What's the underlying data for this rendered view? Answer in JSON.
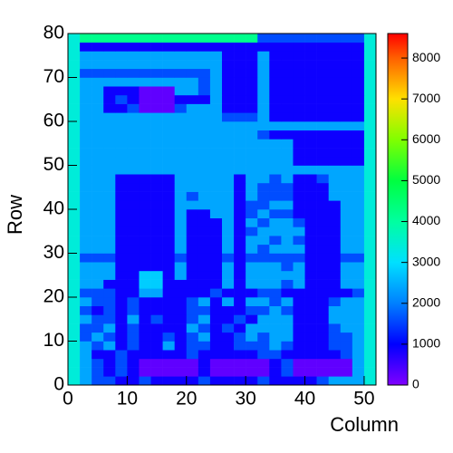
{
  "chart_data": {
    "type": "heatmap",
    "x_label": "Column",
    "y_label": "Row",
    "xlim": [
      0,
      52
    ],
    "ylim": [
      0,
      80
    ],
    "zlim": [
      0,
      8600
    ],
    "xticks": [
      0,
      10,
      20,
      30,
      40,
      50
    ],
    "yticks": [
      0,
      10,
      20,
      30,
      40,
      50,
      60,
      70,
      80
    ],
    "zticks": [
      0,
      1000,
      2000,
      3000,
      4000,
      5000,
      6000,
      7000,
      8000
    ],
    "colorscale": [
      [
        0,
        "#8000ff"
      ],
      [
        1000,
        "#0000ff"
      ],
      [
        2000,
        "#0080ff"
      ],
      [
        3000,
        "#00e0ff"
      ],
      [
        4000,
        "#00ffa0"
      ],
      [
        5000,
        "#00ff40"
      ],
      [
        6000,
        "#80ff00"
      ],
      [
        7000,
        "#ffe000"
      ],
      [
        8000,
        "#ff6000"
      ],
      [
        8600,
        "#ff0000"
      ]
    ],
    "xbins": [
      0,
      2,
      4,
      6,
      8,
      10,
      12,
      14,
      16,
      18,
      20,
      22,
      24,
      26,
      28,
      30,
      32,
      34,
      36,
      38,
      40,
      42,
      44,
      46,
      48,
      50,
      52
    ],
    "ybins": [
      0,
      2,
      4,
      6,
      8,
      10,
      12,
      14,
      16,
      18,
      20,
      22,
      24,
      26,
      28,
      30,
      32,
      34,
      36,
      38,
      40,
      42,
      44,
      46,
      48,
      50,
      52,
      54,
      56,
      58,
      60,
      62,
      64,
      66,
      68,
      70,
      72,
      74,
      76,
      78,
      80
    ],
    "z": [
      [
        3400,
        2400,
        1600,
        1600,
        900,
        900,
        1600,
        900,
        900,
        900,
        900,
        1600,
        900,
        900,
        900,
        900,
        1600,
        900,
        900,
        900,
        900,
        1600,
        2400,
        2400,
        2400,
        3400
      ],
      [
        3400,
        2400,
        1600,
        900,
        1600,
        900,
        250,
        250,
        250,
        250,
        250,
        900,
        250,
        250,
        250,
        250,
        250,
        900,
        1600,
        250,
        250,
        250,
        250,
        250,
        2400,
        3400
      ],
      [
        3400,
        2400,
        1600,
        900,
        1600,
        900,
        250,
        250,
        250,
        250,
        250,
        900,
        250,
        250,
        250,
        250,
        250,
        900,
        1600,
        250,
        250,
        250,
        250,
        250,
        2400,
        3400
      ],
      [
        3400,
        2400,
        900,
        900,
        1600,
        900,
        900,
        900,
        900,
        900,
        1600,
        900,
        900,
        900,
        900,
        900,
        1600,
        1600,
        900,
        900,
        900,
        900,
        900,
        1600,
        2400,
        3400
      ],
      [
        3400,
        2400,
        1600,
        2400,
        900,
        1600,
        900,
        900,
        2400,
        900,
        1600,
        1600,
        900,
        900,
        1600,
        1600,
        1600,
        2400,
        1600,
        900,
        900,
        900,
        1600,
        1600,
        2400,
        3400
      ],
      [
        3400,
        1600,
        2400,
        1600,
        900,
        1600,
        900,
        900,
        1600,
        900,
        1600,
        2400,
        900,
        900,
        1600,
        2400,
        1600,
        2400,
        2400,
        900,
        900,
        900,
        1600,
        1600,
        2400,
        3400
      ],
      [
        3400,
        1600,
        1600,
        2400,
        900,
        1600,
        900,
        900,
        900,
        900,
        2400,
        1600,
        900,
        1600,
        900,
        2400,
        2400,
        2400,
        2400,
        900,
        900,
        900,
        1600,
        2400,
        2400,
        3400
      ],
      [
        3400,
        2400,
        1600,
        1600,
        900,
        2400,
        900,
        1600,
        900,
        900,
        1600,
        2400,
        900,
        900,
        1600,
        900,
        2400,
        2400,
        2400,
        900,
        900,
        900,
        2400,
        2400,
        2400,
        3400
      ],
      [
        3400,
        1600,
        900,
        1600,
        900,
        1600,
        900,
        900,
        900,
        900,
        1600,
        1600,
        900,
        900,
        900,
        1600,
        1600,
        2400,
        1600,
        900,
        900,
        900,
        2400,
        2400,
        2400,
        3400
      ],
      [
        3400,
        2400,
        1600,
        1600,
        900,
        1600,
        900,
        900,
        900,
        900,
        1600,
        2400,
        900,
        2400,
        900,
        2400,
        2400,
        1600,
        2400,
        900,
        900,
        900,
        1600,
        2400,
        2400,
        3400
      ],
      [
        3400,
        1600,
        1600,
        1600,
        900,
        900,
        2400,
        2400,
        900,
        900,
        900,
        900,
        1600,
        900,
        900,
        900,
        1600,
        1600,
        900,
        900,
        900,
        900,
        900,
        900,
        1600,
        3400
      ],
      [
        3400,
        2400,
        2400,
        900,
        900,
        900,
        2800,
        2800,
        900,
        900,
        900,
        900,
        900,
        2400,
        900,
        2400,
        2400,
        2400,
        1600,
        2400,
        900,
        900,
        900,
        2400,
        2400,
        3400
      ],
      [
        3400,
        2400,
        2400,
        2400,
        900,
        900,
        2800,
        2800,
        900,
        2400,
        900,
        900,
        900,
        2400,
        900,
        2400,
        2400,
        2400,
        2400,
        2400,
        900,
        900,
        900,
        2400,
        2400,
        3400
      ],
      [
        3400,
        2400,
        2400,
        2400,
        900,
        900,
        900,
        900,
        900,
        2400,
        900,
        900,
        900,
        2400,
        900,
        2400,
        2400,
        2400,
        1600,
        2400,
        900,
        900,
        900,
        2400,
        2400,
        3400
      ],
      [
        3400,
        1600,
        1600,
        1600,
        900,
        900,
        900,
        900,
        900,
        1600,
        900,
        900,
        900,
        1600,
        900,
        1600,
        1600,
        1600,
        1600,
        1600,
        900,
        900,
        900,
        1600,
        1600,
        3400
      ],
      [
        3400,
        2400,
        2400,
        2400,
        900,
        900,
        900,
        900,
        900,
        2400,
        900,
        900,
        900,
        2400,
        900,
        2400,
        1600,
        2400,
        2400,
        2400,
        900,
        900,
        900,
        2400,
        2400,
        3400
      ],
      [
        3400,
        2400,
        2400,
        2400,
        900,
        900,
        900,
        900,
        900,
        2400,
        900,
        900,
        900,
        2400,
        900,
        2400,
        2400,
        1600,
        2400,
        1600,
        900,
        900,
        900,
        2400,
        2400,
        3400
      ],
      [
        3400,
        2400,
        2400,
        2400,
        900,
        900,
        900,
        900,
        900,
        2400,
        900,
        900,
        900,
        2400,
        900,
        1600,
        2400,
        2400,
        2400,
        2400,
        900,
        900,
        900,
        2400,
        2400,
        3400
      ],
      [
        3400,
        2400,
        2400,
        2400,
        900,
        900,
        900,
        900,
        900,
        2400,
        900,
        900,
        900,
        2400,
        900,
        2400,
        1600,
        2400,
        2400,
        1600,
        900,
        900,
        900,
        2400,
        2400,
        3400
      ],
      [
        3400,
        2400,
        2400,
        2400,
        900,
        900,
        900,
        900,
        900,
        2400,
        900,
        900,
        2400,
        2400,
        900,
        1600,
        2400,
        1600,
        1600,
        900,
        900,
        900,
        900,
        2400,
        2400,
        3400
      ],
      [
        3400,
        2400,
        2400,
        2400,
        900,
        900,
        900,
        900,
        900,
        2400,
        2400,
        2400,
        2400,
        2400,
        900,
        1600,
        1600,
        2400,
        2400,
        900,
        900,
        900,
        900,
        2400,
        2400,
        3400
      ],
      [
        3400,
        2400,
        2400,
        2400,
        900,
        900,
        900,
        900,
        900,
        2400,
        1600,
        2400,
        2400,
        2400,
        900,
        2400,
        1600,
        1600,
        1600,
        900,
        900,
        900,
        2400,
        2400,
        2400,
        3400
      ],
      [
        3400,
        2400,
        2400,
        2400,
        900,
        900,
        900,
        900,
        900,
        2400,
        2400,
        2400,
        2400,
        2400,
        900,
        2400,
        1600,
        1600,
        1600,
        900,
        900,
        900,
        2400,
        2400,
        2400,
        3400
      ],
      [
        3400,
        2400,
        2400,
        2400,
        900,
        900,
        900,
        900,
        900,
        2400,
        2400,
        2400,
        2400,
        2400,
        900,
        2400,
        2400,
        1600,
        2400,
        900,
        900,
        1600,
        2400,
        2400,
        2400,
        3400
      ],
      [
        3400,
        2400,
        2400,
        2400,
        2400,
        2400,
        2400,
        2400,
        2400,
        2400,
        2400,
        2400,
        2400,
        2400,
        2400,
        2400,
        2400,
        2400,
        2400,
        2400,
        2400,
        2400,
        2400,
        2400,
        2400,
        3400
      ],
      [
        3400,
        2400,
        2400,
        2400,
        2400,
        2400,
        2400,
        2400,
        2400,
        2400,
        2400,
        2400,
        2400,
        2400,
        2400,
        2400,
        2400,
        2400,
        2400,
        900,
        900,
        900,
        900,
        900,
        900,
        3400
      ],
      [
        3400,
        2400,
        2400,
        2400,
        2400,
        2400,
        2400,
        2400,
        2400,
        2400,
        2400,
        2400,
        2400,
        2400,
        2400,
        2400,
        2400,
        2400,
        2400,
        900,
        900,
        900,
        900,
        900,
        900,
        3400
      ],
      [
        3400,
        2400,
        2400,
        2400,
        2400,
        2400,
        2400,
        2400,
        2400,
        2400,
        2400,
        2400,
        2400,
        2400,
        2400,
        2400,
        2400,
        2400,
        2400,
        900,
        900,
        900,
        900,
        900,
        900,
        3400
      ],
      [
        3400,
        2400,
        2400,
        2400,
        2400,
        2400,
        2400,
        2400,
        2400,
        2400,
        2400,
        2400,
        2400,
        2400,
        2400,
        2400,
        1600,
        900,
        900,
        900,
        900,
        900,
        900,
        900,
        900,
        3400
      ],
      [
        3400,
        2400,
        2400,
        2400,
        2400,
        2400,
        2400,
        2400,
        2400,
        2400,
        2400,
        2400,
        2400,
        2400,
        2400,
        2400,
        2400,
        2400,
        2400,
        2400,
        2400,
        2400,
        2400,
        2400,
        2400,
        3400
      ],
      [
        3400,
        2400,
        2400,
        2400,
        2400,
        2400,
        2400,
        2400,
        2400,
        2400,
        2400,
        2400,
        2400,
        1600,
        1600,
        1600,
        2400,
        900,
        900,
        900,
        900,
        900,
        900,
        900,
        900,
        3400
      ],
      [
        3400,
        2400,
        2400,
        900,
        900,
        1600,
        250,
        250,
        250,
        1600,
        2400,
        2400,
        2400,
        900,
        900,
        900,
        2400,
        900,
        900,
        900,
        900,
        900,
        900,
        900,
        900,
        3400
      ],
      [
        3400,
        2400,
        2400,
        900,
        1600,
        900,
        250,
        250,
        250,
        900,
        900,
        900,
        2400,
        900,
        900,
        900,
        2400,
        900,
        900,
        900,
        900,
        900,
        900,
        900,
        900,
        3400
      ],
      [
        3400,
        2400,
        2400,
        900,
        900,
        900,
        250,
        250,
        250,
        2400,
        2400,
        1600,
        2400,
        900,
        900,
        900,
        2400,
        900,
        900,
        900,
        900,
        900,
        900,
        900,
        900,
        3400
      ],
      [
        3400,
        2400,
        2400,
        2400,
        2400,
        2400,
        2400,
        2400,
        2400,
        2400,
        2400,
        1600,
        2400,
        900,
        900,
        900,
        2400,
        900,
        900,
        900,
        900,
        900,
        900,
        900,
        900,
        3400
      ],
      [
        3400,
        1600,
        1600,
        1600,
        1600,
        1600,
        1600,
        1600,
        1600,
        1600,
        1600,
        1600,
        2400,
        900,
        900,
        900,
        2400,
        900,
        900,
        900,
        900,
        900,
        900,
        900,
        900,
        3400
      ],
      [
        3400,
        2400,
        2400,
        2400,
        2400,
        2400,
        2400,
        2400,
        2400,
        2400,
        2400,
        2400,
        2400,
        900,
        900,
        900,
        2400,
        900,
        900,
        900,
        900,
        900,
        900,
        900,
        900,
        3400
      ],
      [
        3400,
        2400,
        2400,
        2400,
        2400,
        2400,
        2400,
        2400,
        2400,
        2400,
        2400,
        2400,
        2400,
        900,
        900,
        900,
        2400,
        900,
        900,
        900,
        900,
        900,
        900,
        900,
        900,
        3400
      ],
      [
        3400,
        900,
        900,
        900,
        900,
        900,
        900,
        900,
        900,
        900,
        900,
        900,
        900,
        900,
        900,
        900,
        900,
        900,
        900,
        900,
        900,
        900,
        900,
        900,
        900,
        3400
      ],
      [
        3400,
        4200,
        4200,
        4200,
        4200,
        4200,
        4200,
        4200,
        4200,
        4200,
        4200,
        4200,
        4200,
        4200,
        4200,
        4200,
        1600,
        1600,
        1600,
        1600,
        1600,
        1600,
        1600,
        1600,
        1600,
        3400
      ]
    ]
  }
}
